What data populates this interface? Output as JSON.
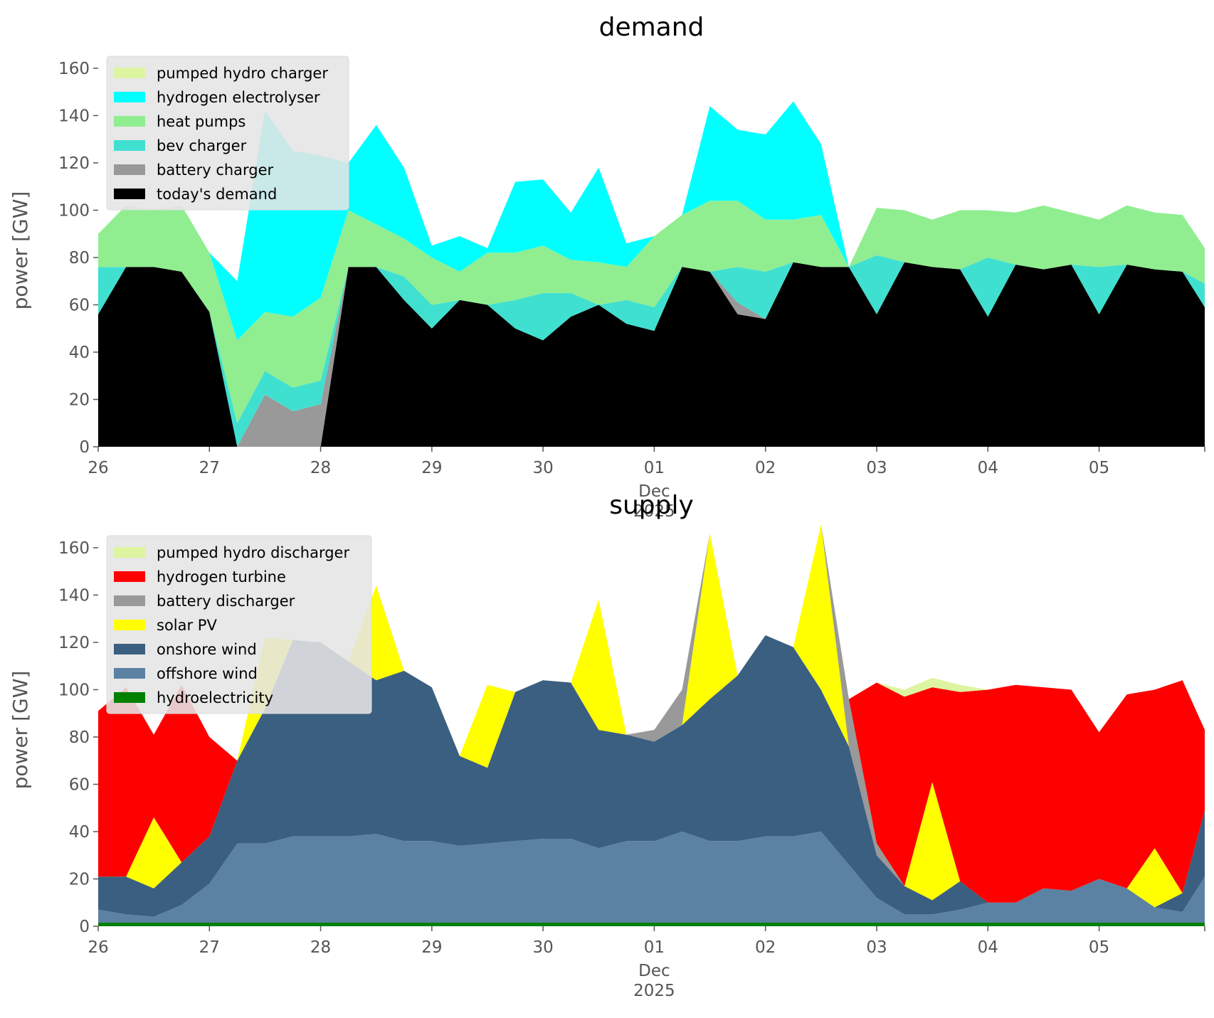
{
  "chart_data": [
    {
      "type": "area",
      "stacked": true,
      "title": "demand",
      "ylabel": "power [GW]",
      "ylim": [
        0,
        166
      ],
      "yticks": [
        0,
        20,
        40,
        60,
        80,
        100,
        120,
        140,
        160
      ],
      "xlim": [
        0,
        9.95
      ],
      "xticks": [
        {
          "x": 0,
          "label": "26"
        },
        {
          "x": 1,
          "label": "27"
        },
        {
          "x": 2,
          "label": "28"
        },
        {
          "x": 3,
          "label": "29"
        },
        {
          "x": 4,
          "label": "30"
        },
        {
          "x": 5,
          "label": "01"
        },
        {
          "x": 6,
          "label": "02"
        },
        {
          "x": 7,
          "label": "03"
        },
        {
          "x": 8,
          "label": "04"
        },
        {
          "x": 9,
          "label": "05"
        }
      ],
      "xlabel_month": "Dec",
      "xlabel_year": "2025",
      "legend": {
        "position": "upper-left"
      },
      "x": [
        0,
        0.25,
        0.5,
        0.75,
        1,
        1.25,
        1.5,
        1.75,
        2,
        2.25,
        2.5,
        2.75,
        3,
        3.25,
        3.5,
        3.75,
        4,
        4.25,
        4.5,
        4.75,
        5,
        5.25,
        5.5,
        5.75,
        6,
        6.25,
        6.5,
        6.75,
        7,
        7.25,
        7.5,
        7.75,
        8,
        8.25,
        8.5,
        8.75,
        9,
        9.25,
        9.5,
        9.75,
        9.95
      ],
      "series": [
        {
          "name": "today's demand",
          "color": "#000000",
          "values": [
            56,
            76,
            76,
            74,
            57,
            0,
            0,
            0,
            0,
            76,
            76,
            62,
            50,
            62,
            60,
            50,
            45,
            55,
            60,
            52,
            49,
            76,
            74,
            56,
            54,
            78,
            76,
            76,
            56,
            78,
            76,
            75,
            55,
            77,
            75,
            77,
            56,
            77,
            75,
            74,
            59
          ]
        },
        {
          "name": "battery charger",
          "color": "#999999",
          "values": [
            0,
            0,
            0,
            0,
            0,
            0,
            22,
            15,
            18,
            0,
            0,
            0,
            0,
            0,
            0,
            0,
            0,
            0,
            0,
            0,
            0,
            0,
            0,
            5,
            0,
            0,
            0,
            0,
            0,
            0,
            0,
            0,
            0,
            0,
            0,
            0,
            0,
            0,
            0,
            0,
            0
          ]
        },
        {
          "name": "bev charger",
          "color": "#40e0d0",
          "values": [
            20,
            0,
            0,
            0,
            0,
            10,
            10,
            10,
            10,
            0,
            0,
            10,
            10,
            0,
            0,
            12,
            20,
            10,
            0,
            10,
            10,
            0,
            0,
            15,
            20,
            0,
            0,
            0,
            25,
            0,
            0,
            0,
            25,
            0,
            0,
            0,
            20,
            0,
            0,
            0,
            10
          ]
        },
        {
          "name": "heat pumps",
          "color": "#90ee90",
          "values": [
            14,
            26,
            24,
            28,
            25,
            35,
            25,
            30,
            35,
            24,
            18,
            16,
            20,
            12,
            22,
            20,
            20,
            14,
            18,
            14,
            30,
            22,
            30,
            28,
            22,
            18,
            22,
            0,
            20,
            22,
            20,
            25,
            20,
            22,
            27,
            22,
            20,
            25,
            24,
            24,
            15
          ]
        },
        {
          "name": "hydrogen electrolyser",
          "color": "#00ffff",
          "values": [
            0,
            0,
            0,
            0,
            0,
            25,
            85,
            70,
            60,
            20,
            42,
            30,
            5,
            15,
            2,
            30,
            28,
            20,
            40,
            10,
            0,
            0,
            40,
            30,
            36,
            50,
            30,
            0,
            0,
            0,
            0,
            0,
            0,
            0,
            0,
            0,
            0,
            0,
            0,
            0,
            0
          ]
        },
        {
          "name": "pumped hydro charger",
          "color": "#ddf5a0",
          "values": [
            0,
            0,
            0,
            0,
            0,
            0,
            0,
            0,
            0,
            0,
            0,
            0,
            0,
            0,
            0,
            0,
            0,
            0,
            0,
            0,
            0,
            0,
            0,
            0,
            0,
            0,
            0,
            0,
            0,
            0,
            0,
            0,
            0,
            0,
            0,
            0,
            0,
            0,
            0,
            0,
            0
          ]
        }
      ],
      "legend_order": [
        "pumped hydro charger",
        "hydrogen electrolyser",
        "heat pumps",
        "bev charger",
        "battery charger",
        "today's demand"
      ]
    },
    {
      "type": "area",
      "stacked": true,
      "title": "supply",
      "ylabel": "power [GW]",
      "ylim": [
        0,
        166
      ],
      "yticks": [
        0,
        20,
        40,
        60,
        80,
        100,
        120,
        140,
        160
      ],
      "xlim": [
        0,
        9.95
      ],
      "xticks": [
        {
          "x": 0,
          "label": "26"
        },
        {
          "x": 1,
          "label": "27"
        },
        {
          "x": 2,
          "label": "28"
        },
        {
          "x": 3,
          "label": "29"
        },
        {
          "x": 4,
          "label": "30"
        },
        {
          "x": 5,
          "label": "01"
        },
        {
          "x": 6,
          "label": "02"
        },
        {
          "x": 7,
          "label": "03"
        },
        {
          "x": 8,
          "label": "04"
        },
        {
          "x": 9,
          "label": "05"
        }
      ],
      "xlabel_month": "Dec",
      "xlabel_year": "2025",
      "legend": {
        "position": "upper-left"
      },
      "x": [
        0,
        0.25,
        0.5,
        0.75,
        1,
        1.25,
        1.5,
        1.75,
        2,
        2.25,
        2.5,
        2.75,
        3,
        3.25,
        3.5,
        3.75,
        4,
        4.25,
        4.5,
        4.75,
        5,
        5.25,
        5.5,
        5.75,
        6,
        6.25,
        6.5,
        6.75,
        7,
        7.25,
        7.5,
        7.75,
        8,
        8.25,
        8.5,
        8.75,
        9,
        9.25,
        9.5,
        9.75,
        9.95
      ],
      "series": [
        {
          "name": "hydroelectricity",
          "color": "#008000",
          "values": [
            1.5,
            1.5,
            1.5,
            1.5,
            1.5,
            1.5,
            1.5,
            1.5,
            1.5,
            1.5,
            1.5,
            1.5,
            1.5,
            1.5,
            1.5,
            1.5,
            1.5,
            1.5,
            1.5,
            1.5,
            1.5,
            1.5,
            1.5,
            1.5,
            1.5,
            1.5,
            1.5,
            1.5,
            1.5,
            1.5,
            1.5,
            1.5,
            1.5,
            1.5,
            1.5,
            1.5,
            1.5,
            1.5,
            1.5,
            1.5,
            1.5
          ]
        },
        {
          "name": "offshore wind",
          "color": "#5b82a3",
          "values": [
            5.5,
            3.5,
            2.5,
            7.5,
            16.5,
            33.5,
            33.5,
            36.5,
            36.5,
            36.5,
            37.5,
            34.5,
            34.5,
            32.5,
            33.5,
            34.5,
            35.5,
            35.5,
            31.5,
            34.5,
            34.5,
            38.5,
            34.5,
            34.5,
            36.5,
            36.5,
            38.5,
            24.5,
            10.5,
            3.5,
            3.5,
            5.5,
            8.5,
            8.5,
            14.5,
            13.5,
            18.5,
            14.5,
            6.5,
            4.5,
            19.5
          ]
        },
        {
          "name": "onshore wind",
          "color": "#3b5f80",
          "values": [
            14,
            16,
            12,
            18,
            20,
            35,
            57,
            83,
            82,
            74,
            65,
            72,
            65,
            38,
            32,
            63,
            67,
            66,
            50,
            45,
            42,
            45,
            60,
            70,
            85,
            80,
            60,
            50,
            18,
            12,
            6,
            12,
            0,
            0,
            0,
            0,
            0,
            0,
            0,
            8,
            28
          ]
        },
        {
          "name": "solar PV",
          "color": "#ffff00",
          "values": [
            0,
            0,
            30,
            0,
            0,
            0,
            30,
            0,
            0,
            0,
            40,
            0,
            0,
            0,
            35,
            0,
            0,
            0,
            55,
            0,
            0,
            0,
            70,
            0,
            0,
            0,
            70,
            0,
            0,
            0,
            50,
            0,
            0,
            0,
            0,
            0,
            0,
            0,
            25,
            0,
            0
          ]
        },
        {
          "name": "battery discharger",
          "color": "#999999",
          "values": [
            0,
            0,
            0,
            0,
            0,
            0,
            0,
            0,
            0,
            0,
            0,
            0,
            0,
            0,
            0,
            0,
            0,
            0,
            0,
            0,
            5,
            15,
            0,
            0,
            0,
            0,
            0,
            20,
            5,
            0,
            0,
            0,
            0,
            0,
            0,
            0,
            0,
            0,
            0,
            0,
            0
          ]
        },
        {
          "name": "hydrogen turbine",
          "color": "#ff0000",
          "values": [
            70,
            80,
            35,
            75,
            42,
            0,
            0,
            0,
            0,
            0,
            0,
            0,
            0,
            0,
            0,
            0,
            0,
            0,
            0,
            0,
            0,
            0,
            0,
            0,
            0,
            0,
            0,
            0,
            68,
            80,
            40,
            80,
            90,
            92,
            85,
            85,
            62,
            82,
            67,
            90,
            34
          ]
        },
        {
          "name": "pumped hydro discharger",
          "color": "#ddf5a0",
          "values": [
            0,
            0,
            0,
            0,
            0,
            0,
            0,
            0,
            0,
            0,
            0,
            0,
            0,
            0,
            0,
            0,
            0,
            0,
            0,
            0,
            0,
            0,
            0,
            0,
            0,
            0,
            0,
            0,
            0,
            3,
            4,
            3,
            0,
            0,
            0,
            0,
            0,
            0,
            0,
            0,
            0
          ]
        }
      ],
      "legend_order": [
        "pumped hydro discharger",
        "hydrogen turbine",
        "battery discharger",
        "solar PV",
        "onshore wind",
        "offshore wind",
        "hydroelectricity"
      ]
    }
  ]
}
